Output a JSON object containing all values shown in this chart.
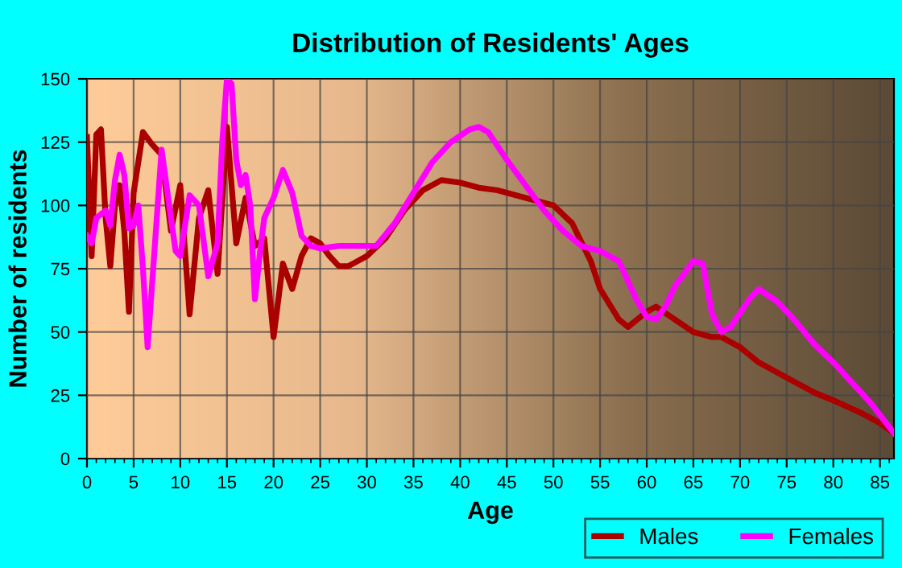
{
  "chart_data": {
    "type": "line",
    "title": "Distribution of Residents' Ages",
    "xlabel": "Age",
    "ylabel": "Number of residents",
    "xlim": [
      0,
      86.5
    ],
    "xticks": [
      0,
      5,
      10,
      15,
      20,
      25,
      30,
      35,
      40,
      45,
      50,
      55,
      60,
      65,
      70,
      75,
      80,
      85
    ],
    "ylim": [
      0,
      150
    ],
    "yticks": [
      0,
      25,
      50,
      75,
      100,
      125,
      150
    ],
    "grid": true,
    "legend": "bottom right",
    "line_style": "solid",
    "marker": "none",
    "series": [
      {
        "name": "Males",
        "color": "#aa0000",
        "x": [
          0,
          0.5,
          1,
          1.5,
          2,
          2.5,
          3,
          3.5,
          4,
          4.5,
          5,
          6,
          7,
          8,
          9,
          10,
          11,
          12,
          13,
          14,
          15,
          16,
          17,
          18,
          19,
          20,
          21,
          22,
          23,
          24,
          25,
          26,
          27,
          28,
          29,
          30,
          32,
          34,
          36,
          38,
          40,
          42,
          44,
          46,
          48,
          50,
          52,
          54,
          55,
          57,
          58,
          60,
          61,
          63,
          65,
          67,
          68,
          70,
          72,
          75,
          78,
          80,
          83,
          85,
          86.5
        ],
        "values": [
          127,
          80,
          128,
          130,
          95,
          76,
          100,
          108,
          90,
          58,
          105,
          129,
          124,
          120,
          90,
          108,
          57,
          95,
          106,
          73,
          131,
          85,
          103,
          84,
          87,
          48,
          77,
          67,
          80,
          87,
          85,
          80,
          76,
          76,
          78,
          80,
          87,
          98,
          106,
          110,
          109,
          107,
          106,
          104,
          102,
          100,
          93,
          78,
          67,
          55,
          52,
          58,
          60,
          55,
          50,
          48,
          48,
          44,
          38,
          32,
          26,
          23,
          18,
          14,
          10
        ]
      },
      {
        "name": "Females",
        "color": "#ff00ff",
        "x": [
          0,
          0.5,
          1,
          2,
          2.5,
          3,
          3.5,
          4,
          4.5,
          5,
          5.5,
          6,
          6.5,
          7,
          8,
          9,
          9.5,
          10,
          11,
          12,
          13,
          14,
          14.5,
          15,
          15.5,
          16,
          16.5,
          17,
          17.5,
          18,
          18.5,
          19,
          20,
          21,
          22,
          23,
          24,
          25,
          27,
          29,
          31,
          33,
          35,
          37,
          39,
          41,
          42,
          43,
          45,
          47,
          49,
          51,
          53,
          55,
          57,
          59,
          60,
          61,
          62,
          63,
          65,
          66,
          67,
          68,
          69,
          71,
          72,
          74,
          76,
          78,
          80,
          82,
          84,
          86.5
        ],
        "values": [
          88,
          85,
          95,
          98,
          92,
          110,
          120,
          112,
          91,
          92,
          100,
          75,
          44,
          70,
          122,
          95,
          82,
          80,
          104,
          100,
          72,
          85,
          125,
          150,
          148,
          118,
          108,
          112,
          100,
          63,
          80,
          95,
          103,
          114,
          105,
          88,
          84,
          83,
          84,
          84,
          84,
          93,
          105,
          117,
          125,
          130,
          131,
          129,
          118,
          108,
          98,
          90,
          84,
          82,
          78,
          62,
          56,
          55,
          60,
          68,
          78,
          77,
          57,
          50,
          52,
          63,
          67,
          62,
          54,
          45,
          38,
          30,
          22,
          10
        ]
      }
    ]
  }
}
